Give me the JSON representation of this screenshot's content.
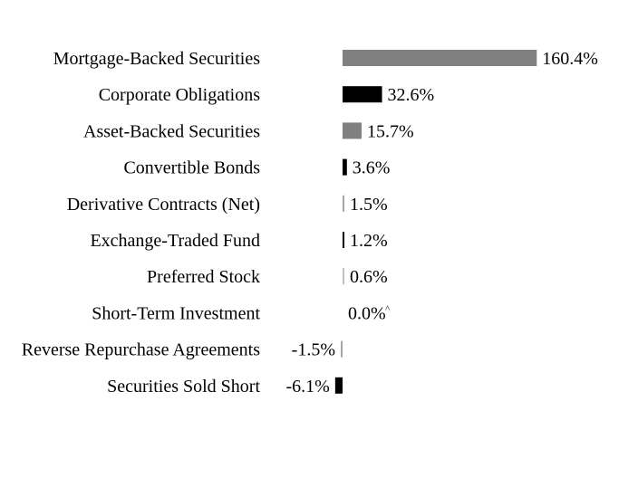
{
  "chart_data": {
    "type": "bar",
    "orientation": "horizontal",
    "unit": "%",
    "categories": [
      "Mortgage-Backed Securities",
      "Corporate Obligations",
      "Asset-Backed Securities",
      "Convertible Bonds",
      "Derivative Contracts (Net)",
      "Exchange-Traded Fund",
      "Preferred Stock",
      "Short-Term Investment",
      "Reverse Repurchase Agreements",
      "Securities Sold Short"
    ],
    "values": [
      160.4,
      32.6,
      15.7,
      3.6,
      1.5,
      1.2,
      0.6,
      0.0,
      -1.5,
      -6.1
    ],
    "value_labels": [
      "160.4%",
      "32.6%",
      "15.7%",
      "3.6%",
      "1.5%",
      "1.2%",
      "0.6%",
      "0.0%",
      "-1.5%",
      "-6.1%"
    ],
    "footnote_markers": [
      "",
      "",
      "",
      "",
      "",
      "",
      "",
      "^",
      "",
      ""
    ],
    "bar_colors": [
      "#808080",
      "#000000",
      "#808080",
      "#000000",
      "#a6a6a6",
      "#000000",
      "#c0c0c0",
      "#808080",
      "#a6a6a6",
      "#000000"
    ],
    "xlim": [
      -6.1,
      160.4
    ],
    "grid": false,
    "legend": "none"
  }
}
